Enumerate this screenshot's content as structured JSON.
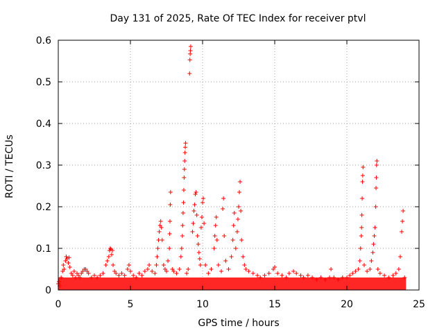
{
  "chart_data": {
    "type": "scatter",
    "title": "Day 131 of 2025, Rate Of TEC Index for receiver ptvl",
    "xlabel": "GPS time / hours",
    "ylabel": "ROTI / TECUs",
    "xlim": [
      0,
      25
    ],
    "ylim": [
      0,
      0.6
    ],
    "xticks": [
      "0",
      "5",
      "10",
      "15",
      "20",
      "25"
    ],
    "yticks": [
      "0",
      "0.1",
      "0.2",
      "0.3",
      "0.4",
      "0.5",
      "0.6"
    ],
    "grid": true,
    "marker": "+",
    "color": "#ff0000",
    "series": [
      {
        "name": "ROTI",
        "points": [
          [
            0.0,
            0.015
          ],
          [
            0.05,
            0.02
          ],
          [
            0.1,
            0.01
          ],
          [
            0.2,
            0.03
          ],
          [
            0.3,
            0.045
          ],
          [
            0.35,
            0.06
          ],
          [
            0.4,
            0.05
          ],
          [
            0.5,
            0.07
          ],
          [
            0.55,
            0.08
          ],
          [
            0.6,
            0.075
          ],
          [
            0.7,
            0.065
          ],
          [
            0.75,
            0.078
          ],
          [
            0.8,
            0.055
          ],
          [
            0.9,
            0.04
          ],
          [
            1.0,
            0.035
          ],
          [
            1.1,
            0.045
          ],
          [
            1.2,
            0.03
          ],
          [
            1.3,
            0.04
          ],
          [
            1.4,
            0.035
          ],
          [
            1.5,
            0.03
          ],
          [
            1.6,
            0.04
          ],
          [
            1.7,
            0.045
          ],
          [
            1.8,
            0.05
          ],
          [
            1.9,
            0.05
          ],
          [
            2.0,
            0.045
          ],
          [
            2.1,
            0.04
          ],
          [
            2.3,
            0.03
          ],
          [
            2.5,
            0.035
          ],
          [
            2.7,
            0.03
          ],
          [
            2.9,
            0.035
          ],
          [
            3.1,
            0.04
          ],
          [
            3.3,
            0.06
          ],
          [
            3.4,
            0.07
          ],
          [
            3.5,
            0.08
          ],
          [
            3.55,
            0.095
          ],
          [
            3.6,
            0.1
          ],
          [
            3.65,
            0.098
          ],
          [
            3.7,
            0.085
          ],
          [
            3.75,
            0.095
          ],
          [
            3.8,
            0.06
          ],
          [
            3.9,
            0.045
          ],
          [
            4.0,
            0.04
          ],
          [
            4.2,
            0.035
          ],
          [
            4.4,
            0.04
          ],
          [
            4.6,
            0.035
          ],
          [
            4.8,
            0.05
          ],
          [
            4.9,
            0.06
          ],
          [
            5.0,
            0.045
          ],
          [
            5.2,
            0.035
          ],
          [
            5.4,
            0.03
          ],
          [
            5.6,
            0.04
          ],
          [
            5.8,
            0.035
          ],
          [
            6.0,
            0.045
          ],
          [
            6.2,
            0.05
          ],
          [
            6.3,
            0.06
          ],
          [
            6.5,
            0.045
          ],
          [
            6.7,
            0.04
          ],
          [
            6.8,
            0.06
          ],
          [
            6.85,
            0.08
          ],
          [
            6.9,
            0.1
          ],
          [
            6.95,
            0.12
          ],
          [
            7.0,
            0.14
          ],
          [
            7.05,
            0.155
          ],
          [
            7.1,
            0.165
          ],
          [
            7.15,
            0.15
          ],
          [
            7.2,
            0.12
          ],
          [
            7.3,
            0.06
          ],
          [
            7.4,
            0.05
          ],
          [
            7.5,
            0.045
          ],
          [
            7.6,
            0.07
          ],
          [
            7.7,
            0.1
          ],
          [
            7.72,
            0.135
          ],
          [
            7.74,
            0.165
          ],
          [
            7.76,
            0.205
          ],
          [
            7.78,
            0.235
          ],
          [
            7.9,
            0.05
          ],
          [
            8.0,
            0.045
          ],
          [
            8.2,
            0.04
          ],
          [
            8.4,
            0.05
          ],
          [
            8.5,
            0.08
          ],
          [
            8.55,
            0.1
          ],
          [
            8.6,
            0.13
          ],
          [
            8.62,
            0.155
          ],
          [
            8.65,
            0.185
          ],
          [
            8.68,
            0.21
          ],
          [
            8.7,
            0.24
          ],
          [
            8.72,
            0.27
          ],
          [
            8.74,
            0.29
          ],
          [
            8.76,
            0.31
          ],
          [
            8.78,
            0.33
          ],
          [
            8.8,
            0.343
          ],
          [
            8.82,
            0.353
          ],
          [
            8.9,
            0.04
          ],
          [
            9.0,
            0.05
          ],
          [
            9.1,
            0.52
          ],
          [
            9.12,
            0.553
          ],
          [
            9.14,
            0.567
          ],
          [
            9.16,
            0.575
          ],
          [
            9.18,
            0.585
          ],
          [
            9.3,
            0.14
          ],
          [
            9.35,
            0.16
          ],
          [
            9.4,
            0.19
          ],
          [
            9.45,
            0.205
          ],
          [
            9.5,
            0.23
          ],
          [
            9.55,
            0.235
          ],
          [
            9.6,
            0.18
          ],
          [
            9.65,
            0.13
          ],
          [
            9.7,
            0.11
          ],
          [
            9.75,
            0.09
          ],
          [
            9.8,
            0.075
          ],
          [
            9.85,
            0.06
          ],
          [
            9.9,
            0.15
          ],
          [
            9.95,
            0.175
          ],
          [
            10.0,
            0.21
          ],
          [
            10.05,
            0.22
          ],
          [
            10.1,
            0.16
          ],
          [
            10.2,
            0.06
          ],
          [
            10.4,
            0.04
          ],
          [
            10.6,
            0.05
          ],
          [
            10.8,
            0.1
          ],
          [
            10.85,
            0.13
          ],
          [
            10.9,
            0.155
          ],
          [
            10.95,
            0.175
          ],
          [
            11.0,
            0.12
          ],
          [
            11.1,
            0.06
          ],
          [
            11.3,
            0.045
          ],
          [
            11.4,
            0.195
          ],
          [
            11.45,
            0.22
          ],
          [
            11.5,
            0.13
          ],
          [
            11.6,
            0.07
          ],
          [
            11.8,
            0.05
          ],
          [
            12.0,
            0.08
          ],
          [
            12.1,
            0.12
          ],
          [
            12.15,
            0.155
          ],
          [
            12.2,
            0.185
          ],
          [
            12.3,
            0.1
          ],
          [
            12.4,
            0.14
          ],
          [
            12.45,
            0.17
          ],
          [
            12.5,
            0.2
          ],
          [
            12.55,
            0.235
          ],
          [
            12.6,
            0.26
          ],
          [
            12.65,
            0.19
          ],
          [
            12.7,
            0.12
          ],
          [
            12.8,
            0.08
          ],
          [
            12.9,
            0.06
          ],
          [
            13.0,
            0.05
          ],
          [
            13.2,
            0.045
          ],
          [
            13.5,
            0.04
          ],
          [
            13.8,
            0.035
          ],
          [
            14.0,
            0.03
          ],
          [
            14.3,
            0.035
          ],
          [
            14.6,
            0.04
          ],
          [
            14.9,
            0.05
          ],
          [
            15.0,
            0.055
          ],
          [
            15.2,
            0.04
          ],
          [
            15.5,
            0.035
          ],
          [
            15.8,
            0.03
          ],
          [
            16.0,
            0.04
          ],
          [
            16.3,
            0.045
          ],
          [
            16.5,
            0.04
          ],
          [
            16.8,
            0.035
          ],
          [
            17.0,
            0.03
          ],
          [
            17.3,
            0.035
          ],
          [
            17.6,
            0.03
          ],
          [
            17.9,
            0.025
          ],
          [
            18.2,
            0.03
          ],
          [
            18.5,
            0.025
          ],
          [
            18.8,
            0.03
          ],
          [
            18.9,
            0.05
          ],
          [
            19.1,
            0.03
          ],
          [
            19.4,
            0.025
          ],
          [
            19.7,
            0.03
          ],
          [
            20.0,
            0.03
          ],
          [
            20.2,
            0.035
          ],
          [
            20.4,
            0.04
          ],
          [
            20.6,
            0.045
          ],
          [
            20.8,
            0.05
          ],
          [
            20.9,
            0.07
          ],
          [
            20.95,
            0.1
          ],
          [
            21.0,
            0.13
          ],
          [
            21.02,
            0.15
          ],
          [
            21.04,
            0.18
          ],
          [
            21.06,
            0.22
          ],
          [
            21.08,
            0.26
          ],
          [
            21.1,
            0.275
          ],
          [
            21.12,
            0.295
          ],
          [
            21.2,
            0.06
          ],
          [
            21.4,
            0.045
          ],
          [
            21.6,
            0.05
          ],
          [
            21.7,
            0.07
          ],
          [
            21.8,
            0.09
          ],
          [
            21.85,
            0.11
          ],
          [
            21.9,
            0.13
          ],
          [
            21.95,
            0.15
          ],
          [
            22.0,
            0.2
          ],
          [
            22.02,
            0.245
          ],
          [
            22.04,
            0.27
          ],
          [
            22.06,
            0.3
          ],
          [
            22.08,
            0.31
          ],
          [
            22.15,
            0.05
          ],
          [
            22.3,
            0.04
          ],
          [
            22.6,
            0.035
          ],
          [
            22.9,
            0.03
          ],
          [
            23.2,
            0.035
          ],
          [
            23.4,
            0.04
          ],
          [
            23.6,
            0.05
          ],
          [
            23.7,
            0.08
          ],
          [
            23.8,
            0.14
          ],
          [
            23.85,
            0.165
          ],
          [
            23.9,
            0.19
          ],
          [
            24.0,
            0.03
          ]
        ]
      }
    ]
  }
}
